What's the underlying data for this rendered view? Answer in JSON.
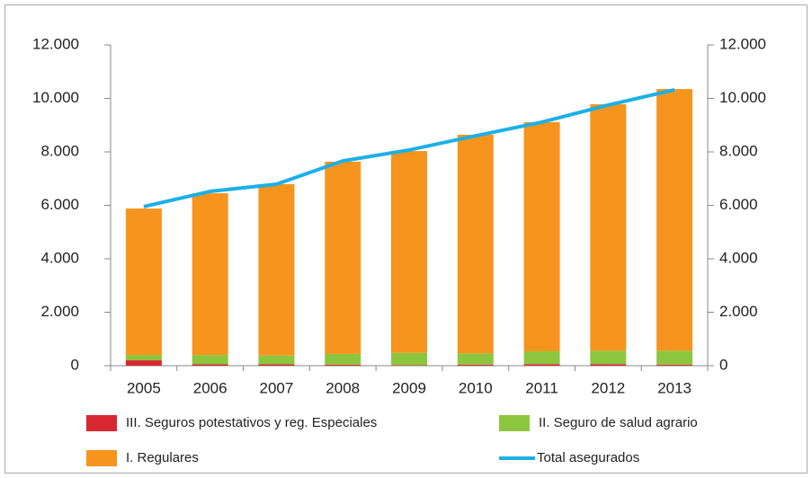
{
  "chart_data": {
    "type": "stacked_bar_line",
    "categories": [
      "2005",
      "2006",
      "2007",
      "2008",
      "2009",
      "2010",
      "2011",
      "2012",
      "2013"
    ],
    "series": [
      {
        "name": "III. Seguros potestativos y reg. Especiales",
        "color": "#d7282f",
        "type": "bar",
        "values": [
          200,
          50,
          50,
          40,
          20,
          40,
          60,
          60,
          40
        ]
      },
      {
        "name": "II. Seguro de salud agrario",
        "color": "#8cc63f",
        "type": "bar",
        "values": [
          200,
          350,
          330,
          400,
          460,
          420,
          480,
          500,
          520
        ]
      },
      {
        "name": "I. Regulares",
        "color": "#f7941d",
        "type": "bar",
        "values": [
          5480,
          6050,
          6410,
          7190,
          7550,
          8180,
          8570,
          9220,
          9790
        ]
      },
      {
        "name": "Total asegurados",
        "color": "#1cb0e6",
        "type": "line",
        "axis": "y2",
        "values": [
          5950,
          6520,
          6790,
          7660,
          8070,
          8600,
          9110,
          9750,
          10320
        ]
      }
    ],
    "ylim": [
      0,
      12000
    ],
    "yticks": [
      0,
      {
        "value": 2000,
        "label": "2.000"
      },
      {
        "value": 4000,
        "label": "4.000"
      },
      {
        "value": 6000,
        "label": "6.000"
      },
      {
        "value": 8000,
        "label": "8.000"
      },
      {
        "value": 10000,
        "label": "10.000"
      },
      {
        "value": 12000,
        "label": "12.000"
      }
    ],
    "y2lim": [
      0,
      12000
    ],
    "y2ticks": [
      0,
      {
        "value": 2000,
        "label": "2.000"
      },
      {
        "value": 4000,
        "label": "4.000"
      },
      {
        "value": 6000,
        "label": "6.000"
      },
      {
        "value": 8000,
        "label": "8.000"
      },
      {
        "value": 10000,
        "label": "10.000"
      },
      {
        "value": 12000,
        "label": "12.000"
      }
    ],
    "grid": false
  }
}
